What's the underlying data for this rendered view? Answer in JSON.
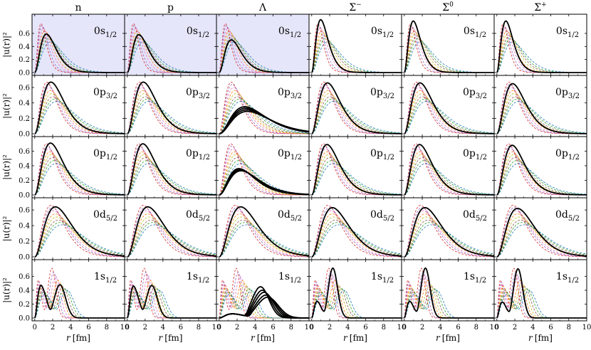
{
  "chart_data": {
    "type": "line",
    "title": "",
    "columns": [
      "n",
      "p",
      "Λ",
      "Σ⁻",
      "Σ⁰",
      "Σ⁺"
    ],
    "column_display": [
      {
        "base": "n",
        "sup": ""
      },
      {
        "base": "p",
        "sup": ""
      },
      {
        "base": "Λ",
        "sup": ""
      },
      {
        "base": "Σ",
        "sup": "−"
      },
      {
        "base": "Σ",
        "sup": "0"
      },
      {
        "base": "Σ",
        "sup": "+"
      }
    ],
    "rows": [
      {
        "state": "0s1/2",
        "main": "0s",
        "sub": "1/2",
        "yticks": [
          "0.0",
          "0.2",
          "0.4",
          "0.6"
        ],
        "ylim": [
          0,
          0.85
        ]
      },
      {
        "state": "0p3/2",
        "main": "0p",
        "sub": "3/2",
        "yticks": [
          "0.0",
          "0.2",
          "0.4",
          "0.6"
        ],
        "ylim": [
          0,
          0.72
        ]
      },
      {
        "state": "0p1/2",
        "main": "0p",
        "sub": "1/2",
        "yticks": [
          "0.0",
          "0.2",
          "0.4",
          "0.6"
        ],
        "ylim": [
          0,
          0.76
        ]
      },
      {
        "state": "0d5/2",
        "main": "0d",
        "sub": "5/2",
        "yticks": [
          "0.0",
          "0.2",
          "0.4",
          "0.6"
        ],
        "ylim": [
          0,
          0.72
        ]
      },
      {
        "state": "1s1/2",
        "main": "1s",
        "sub": "1/2",
        "yticks": [
          "0.0",
          "0.2",
          "0.4",
          "0.6"
        ],
        "ylim": [
          0,
          0.8
        ]
      }
    ],
    "ylabel": "|u(r)|²",
    "xlabel": "r [fm]",
    "xlabel_italic": "r",
    "xlabel_unit": "[fm]",
    "xlim": [
      -0.3,
      10
    ],
    "xticks": [
      "0",
      "2",
      "4",
      "6",
      "8",
      "10"
    ],
    "highlight_color": "#e6e6fa",
    "highlighted_panels": [
      [
        0,
        0
      ],
      [
        0,
        1
      ],
      [
        0,
        2
      ]
    ],
    "reference_series": {
      "style": "dashed",
      "colors": [
        "#d62728",
        "#9467bd",
        "#e377c2",
        "#ff7f0e",
        "#bcbd22",
        "#8c564b",
        "#2ca02c",
        "#1f77b4"
      ],
      "curves_1s": [
        {
          "p1": 0.4,
          "h1": 0.55,
          "p2": 1.9,
          "h2": 0.72
        },
        {
          "p1": 0.5,
          "h1": 0.52,
          "p2": 2.1,
          "h2": 0.66
        },
        {
          "p1": 0.6,
          "h1": 0.49,
          "p2": 2.35,
          "h2": 0.6
        },
        {
          "p1": 0.7,
          "h1": 0.46,
          "p2": 2.6,
          "h2": 0.54
        },
        {
          "p1": 0.8,
          "h1": 0.43,
          "p2": 2.85,
          "h2": 0.49
        },
        {
          "p1": 0.9,
          "h1": 0.4,
          "p2": 3.1,
          "h2": 0.45
        },
        {
          "p1": 1.0,
          "h1": 0.37,
          "p2": 3.35,
          "h2": 0.42
        },
        {
          "p1": 1.1,
          "h1": 0.34,
          "p2": 3.6,
          "h2": 0.4
        }
      ],
      "curves_bound": [
        {
          "0s1/2": {
            "peak": 0.7,
            "height": 0.75
          },
          "0p3/2": {
            "peak": 1.35,
            "height": 0.67
          },
          "0p1/2": {
            "peak": 1.3,
            "height": 0.7
          },
          "0d5/2": {
            "peak": 1.8,
            "height": 0.66
          }
        },
        {
          "0s1/2": {
            "peak": 0.8,
            "height": 0.72
          },
          "0p3/2": {
            "peak": 1.45,
            "height": 0.64
          },
          "0p1/2": {
            "peak": 1.4,
            "height": 0.67
          },
          "0d5/2": {
            "peak": 1.95,
            "height": 0.63
          }
        },
        {
          "0s1/2": {
            "peak": 0.95,
            "height": 0.68
          },
          "0p3/2": {
            "peak": 1.6,
            "height": 0.6
          },
          "0p1/2": {
            "peak": 1.55,
            "height": 0.63
          },
          "0d5/2": {
            "peak": 2.1,
            "height": 0.59
          }
        },
        {
          "0s1/2": {
            "peak": 1.1,
            "height": 0.64
          },
          "0p3/2": {
            "peak": 1.75,
            "height": 0.56
          },
          "0p1/2": {
            "peak": 1.7,
            "height": 0.59
          },
          "0d5/2": {
            "peak": 2.3,
            "height": 0.55
          }
        },
        {
          "0s1/2": {
            "peak": 1.25,
            "height": 0.6
          },
          "0p3/2": {
            "peak": 1.9,
            "height": 0.52
          },
          "0p1/2": {
            "peak": 1.85,
            "height": 0.55
          },
          "0d5/2": {
            "peak": 2.45,
            "height": 0.51
          }
        },
        {
          "0s1/2": {
            "peak": 1.4,
            "height": 0.56
          },
          "0p3/2": {
            "peak": 2.05,
            "height": 0.48
          },
          "0p1/2": {
            "peak": 2.0,
            "height": 0.51
          },
          "0d5/2": {
            "peak": 2.65,
            "height": 0.47
          }
        },
        {
          "0s1/2": {
            "peak": 1.55,
            "height": 0.52
          },
          "0p3/2": {
            "peak": 2.25,
            "height": 0.45
          },
          "0p1/2": {
            "peak": 2.2,
            "height": 0.47
          },
          "0d5/2": {
            "peak": 2.85,
            "height": 0.44
          }
        },
        {
          "0s1/2": {
            "peak": 1.75,
            "height": 0.47
          },
          "0p3/2": {
            "peak": 2.45,
            "height": 0.42
          },
          "0p1/2": {
            "peak": 2.4,
            "height": 0.43
          },
          "0d5/2": {
            "peak": 3.05,
            "height": 0.41
          }
        }
      ]
    },
    "main_series": {
      "style": "solid",
      "color": "#000000",
      "panels": [
        [
          {
            "kind": "peak",
            "peak": 1.3,
            "height": 0.59
          },
          {
            "kind": "peak",
            "peak": 1.8,
            "height": 0.67
          },
          {
            "kind": "peak",
            "peak": 1.75,
            "height": 0.71
          },
          {
            "kind": "peak",
            "peak": 2.3,
            "height": 0.64
          },
          {
            "kind": "double",
            "p1": 0.7,
            "h1": 0.47,
            "p2": 2.8,
            "h2": 0.48
          }
        ],
        [
          {
            "kind": "peak",
            "peak": 1.3,
            "height": 0.58
          },
          {
            "kind": "peak",
            "peak": 1.8,
            "height": 0.67
          },
          {
            "kind": "peak",
            "peak": 1.75,
            "height": 0.7
          },
          {
            "kind": "peak",
            "peak": 2.3,
            "height": 0.64
          },
          {
            "kind": "double",
            "p1": 0.7,
            "h1": 0.46,
            "p2": 2.75,
            "h2": 0.47
          }
        ],
        [
          {
            "kind": "peak",
            "peak": 1.35,
            "height": 0.5
          },
          {
            "kind": "band",
            "peaks": [
              2.85,
              2.95,
              3.05,
              3.15
            ],
            "heights": [
              0.35,
              0.33,
              0.31,
              0.29
            ]
          },
          {
            "kind": "band",
            "peaks": [
              2.2,
              2.28,
              2.36,
              2.44
            ],
            "heights": [
              0.36,
              0.35,
              0.34,
              0.33
            ]
          },
          {
            "kind": "peak",
            "peak": 2.4,
            "height": 0.64
          },
          {
            "kind": "band2",
            "p1": 1.5,
            "h1": 0.06,
            "peaks": [
              4.6,
              4.8,
              5.0,
              5.2,
              5.4
            ],
            "heights": [
              0.45,
              0.4,
              0.37,
              0.33,
              0.3
            ]
          }
        ],
        [
          {
            "kind": "peak",
            "peak": 1.0,
            "height": 0.81
          },
          {
            "kind": "peak",
            "peak": 1.75,
            "height": 0.66
          },
          {
            "kind": "peak",
            "peak": 1.7,
            "height": 0.69
          },
          {
            "kind": "peak",
            "peak": 2.3,
            "height": 0.63
          },
          {
            "kind": "double",
            "p1": 0.6,
            "h1": 0.24,
            "p2": 2.35,
            "h2": 0.72
          }
        ],
        [
          {
            "kind": "peak",
            "peak": 1.0,
            "height": 0.79
          },
          {
            "kind": "peak",
            "peak": 1.75,
            "height": 0.66
          },
          {
            "kind": "peak",
            "peak": 1.7,
            "height": 0.69
          },
          {
            "kind": "peak",
            "peak": 2.3,
            "height": 0.63
          },
          {
            "kind": "double",
            "p1": 0.6,
            "h1": 0.24,
            "p2": 2.35,
            "h2": 0.72
          }
        ],
        [
          {
            "kind": "peak",
            "peak": 1.0,
            "height": 0.79
          },
          {
            "kind": "peak",
            "peak": 1.75,
            "height": 0.65
          },
          {
            "kind": "peak",
            "peak": 1.7,
            "height": 0.68
          },
          {
            "kind": "peak",
            "peak": 2.3,
            "height": 0.62
          },
          {
            "kind": "double",
            "p1": 0.6,
            "h1": 0.23,
            "p2": 2.35,
            "h2": 0.71
          }
        ]
      ]
    }
  }
}
